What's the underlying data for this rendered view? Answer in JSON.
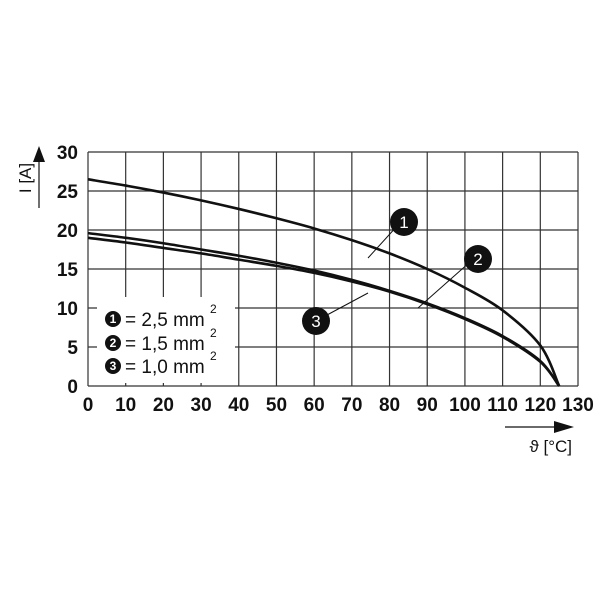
{
  "chart_data": {
    "type": "line",
    "title": "",
    "xlabel": "ϑ [°C]",
    "ylabel": "I [A]",
    "xlim": [
      0,
      130
    ],
    "ylim": [
      0,
      30
    ],
    "x_ticks": [
      "0",
      "10",
      "20",
      "30",
      "40",
      "50",
      "60",
      "70",
      "80",
      "90",
      "100",
      "110",
      "120",
      "130"
    ],
    "y_ticks": [
      "0",
      "5",
      "10",
      "15",
      "20",
      "25",
      "30"
    ],
    "grid": true,
    "legend_position": "lower-left inside",
    "series": [
      {
        "name": "1 = 2,5 mm²",
        "id": "1",
        "x": [
          0,
          10,
          20,
          30,
          40,
          50,
          60,
          70,
          80,
          90,
          100,
          110,
          120,
          125
        ],
        "values": [
          26.5,
          25.7,
          24.8,
          23.8,
          22.7,
          21.5,
          20.2,
          18.7,
          17.0,
          15.0,
          12.6,
          9.7,
          5.2,
          0
        ]
      },
      {
        "name": "2 = 1,5 mm²",
        "id": "2",
        "x": [
          0,
          10,
          20,
          30,
          40,
          50,
          60,
          70,
          80,
          90,
          100,
          110,
          120,
          125
        ],
        "values": [
          19.6,
          19.0,
          18.3,
          17.5,
          16.7,
          15.8,
          14.8,
          13.6,
          12.2,
          10.6,
          8.7,
          6.4,
          3.2,
          0
        ]
      },
      {
        "name": "3 = 1,0 mm²",
        "id": "3",
        "x": [
          0,
          10,
          20,
          30,
          40,
          50,
          60,
          70,
          80,
          90,
          100,
          110,
          120,
          125
        ],
        "values": [
          19.0,
          18.4,
          17.7,
          17.0,
          16.2,
          15.4,
          14.5,
          13.4,
          12.1,
          10.5,
          8.6,
          6.3,
          3.1,
          0
        ]
      }
    ]
  },
  "axis": {
    "x_label": "ϑ [°C]",
    "y_label": "I [A]"
  },
  "legend": [
    {
      "num": "1",
      "text": "= 2,5 mm",
      "sup": "2"
    },
    {
      "num": "2",
      "text": "= 1,5 mm",
      "sup": "2"
    },
    {
      "num": "3",
      "text": "= 1,0 mm",
      "sup": "2"
    }
  ],
  "callouts": [
    "1",
    "2",
    "3"
  ]
}
